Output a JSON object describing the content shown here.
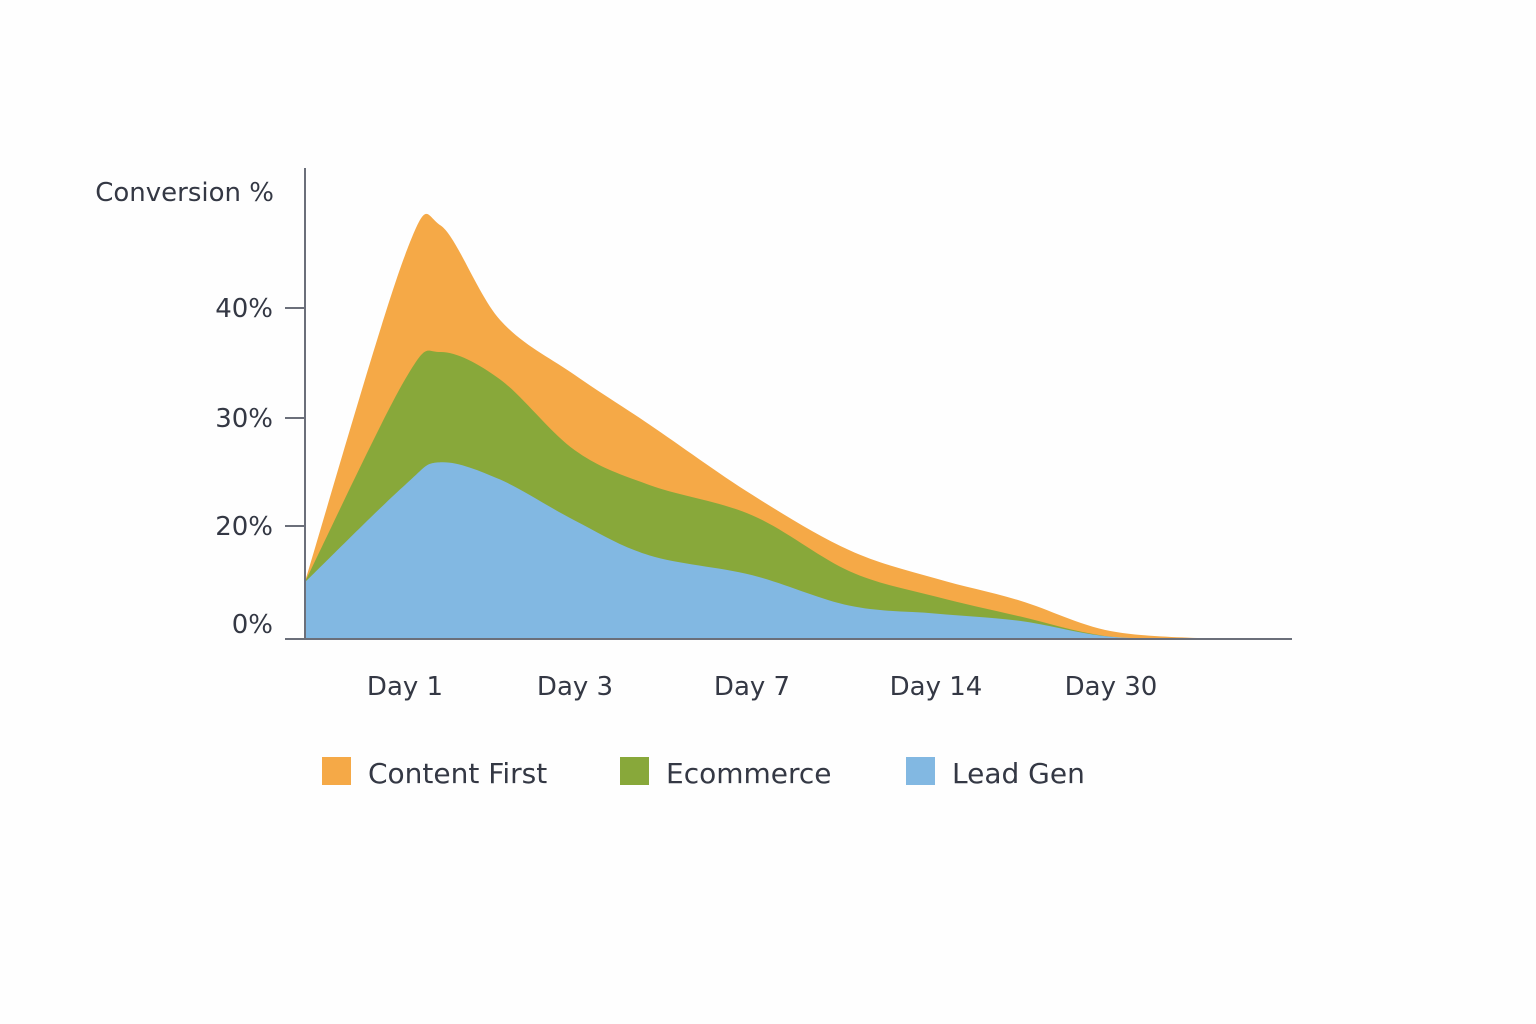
{
  "chart_data": {
    "type": "area",
    "stacked": true,
    "title": "",
    "ylabel": "Conversion %",
    "xlabel": "",
    "y_ticks": [
      {
        "value": 0,
        "label": "0%"
      },
      {
        "value": 20,
        "label": "20%"
      },
      {
        "value": 30,
        "label": "30%"
      },
      {
        "value": 40,
        "label": "40%"
      }
    ],
    "categories": [
      "Day 1",
      "Day 3",
      "Day 7",
      "Day 14",
      "Day 30"
    ],
    "x": [
      0.41,
      1,
      1.21,
      1.56,
      2,
      2.42,
      3,
      3.53,
      4,
      4.48,
      5,
      5.62
    ],
    "series": [
      {
        "name": "Lead Gen",
        "color": "#82B8E2",
        "values": [
          10,
          23.8,
          25.9,
          24.3,
          20.5,
          14.8,
          11.3,
          5.9,
          4.5,
          3.2,
          0.4,
          0
        ]
      },
      {
        "name": "Ecommerce",
        "color": "#88A83A",
        "values": [
          0,
          9.7,
          10.1,
          9.2,
          6.5,
          9.0,
          9.7,
          6.1,
          3.0,
          0.8,
          0,
          0
        ]
      },
      {
        "name": "Content First",
        "color": "#F5A947",
        "values": [
          0,
          11.3,
          11.5,
          5.4,
          6.9,
          5.6,
          1.9,
          3.7,
          3.2,
          2.8,
          1.0,
          0
        ]
      }
    ],
    "legend": {
      "placement": "bottom",
      "items": [
        {
          "label": "Content First",
          "color": "#F5A947"
        },
        {
          "label": "Ecommerce",
          "color": "#88A83A"
        },
        {
          "label": "Lead Gen",
          "color": "#82B8E2"
        }
      ]
    },
    "grid": false
  }
}
